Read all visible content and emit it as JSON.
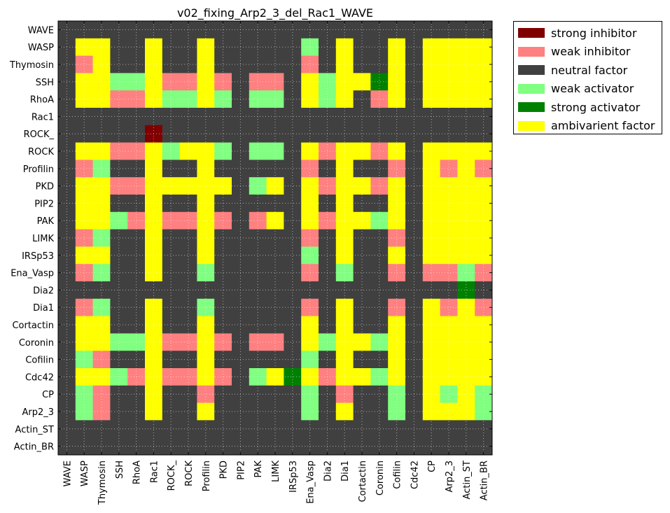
{
  "chart_data": {
    "type": "heatmap",
    "title": "v02_fixing_Arp2_3_del_Rac1_WAVE",
    "grid": true,
    "legend_position": "outside-top-right",
    "columns": [
      "WAVE",
      "WASP",
      "Thymosin",
      "SSH",
      "RhoA",
      "Rac1",
      "ROCK_",
      "ROCK",
      "Profilin",
      "PKD",
      "PIP2",
      "PAK",
      "LIMK",
      "IRSp53",
      "Ena_Vasp",
      "Dia2",
      "Dia1",
      "Cortactin",
      "Coronin",
      "Cofilin",
      "Cdc42",
      "CP",
      "Arp2_3",
      "Actin_ST",
      "Actin_BR"
    ],
    "rows": [
      "WAVE",
      "WASP",
      "Thymosin",
      "SSH",
      "RhoA",
      "Rac1",
      "ROCK_",
      "ROCK",
      "Profilin",
      "PKD",
      "PIP2",
      "PAK",
      "LIMK",
      "IRSp53",
      "Ena_Vasp",
      "Dia2",
      "Dia1",
      "Cortactin",
      "Coronin",
      "Cofilin",
      "Cdc42",
      "CP",
      "Arp2_3",
      "Actin_ST",
      "Actin_BR"
    ],
    "categories": [
      {
        "code": "SI",
        "label": "strong inhibitor",
        "color": "#800000"
      },
      {
        "code": "WI",
        "label": "weak inhibitor",
        "color": "#ff8080"
      },
      {
        "code": "N",
        "label": "neutral factor",
        "color": "#404040"
      },
      {
        "code": "WA",
        "label": "weak activator",
        "color": "#80ff80"
      },
      {
        "code": "SA",
        "label": "strong activator",
        "color": "#008000"
      },
      {
        "code": "A",
        "label": "ambivarient factor",
        "color": "#ffff00"
      }
    ],
    "values": [
      [
        "N",
        "N",
        "N",
        "N",
        "N",
        "N",
        "N",
        "N",
        "N",
        "N",
        "N",
        "N",
        "N",
        "N",
        "N",
        "N",
        "N",
        "N",
        "N",
        "N",
        "N",
        "N",
        "N",
        "N",
        "N"
      ],
      [
        "N",
        "A",
        "A",
        "N",
        "N",
        "A",
        "N",
        "N",
        "A",
        "N",
        "N",
        "N",
        "N",
        "N",
        "WA",
        "N",
        "A",
        "N",
        "N",
        "A",
        "N",
        "A",
        "A",
        "A",
        "A"
      ],
      [
        "N",
        "WI",
        "A",
        "N",
        "N",
        "A",
        "N",
        "N",
        "A",
        "N",
        "N",
        "N",
        "N",
        "N",
        "WI",
        "N",
        "A",
        "N",
        "N",
        "A",
        "N",
        "A",
        "A",
        "A",
        "A"
      ],
      [
        "N",
        "A",
        "A",
        "WA",
        "WA",
        "A",
        "WI",
        "WI",
        "A",
        "WI",
        "N",
        "WI",
        "WI",
        "N",
        "A",
        "WA",
        "A",
        "A",
        "SA",
        "A",
        "N",
        "A",
        "A",
        "A",
        "A"
      ],
      [
        "N",
        "A",
        "A",
        "WI",
        "WI",
        "A",
        "WA",
        "WA",
        "A",
        "WA",
        "N",
        "WA",
        "WA",
        "N",
        "A",
        "WA",
        "A",
        "N",
        "WI",
        "A",
        "N",
        "A",
        "A",
        "A",
        "A"
      ],
      [
        "N",
        "N",
        "N",
        "N",
        "N",
        "N",
        "N",
        "N",
        "N",
        "N",
        "N",
        "N",
        "N",
        "N",
        "N",
        "N",
        "N",
        "N",
        "N",
        "N",
        "N",
        "N",
        "N",
        "N",
        "N"
      ],
      [
        "N",
        "N",
        "N",
        "N",
        "N",
        "SI",
        "N",
        "N",
        "N",
        "N",
        "N",
        "N",
        "N",
        "N",
        "N",
        "N",
        "N",
        "N",
        "N",
        "N",
        "N",
        "N",
        "N",
        "N",
        "N"
      ],
      [
        "N",
        "A",
        "A",
        "WI",
        "WI",
        "A",
        "WA",
        "A",
        "A",
        "WA",
        "N",
        "WA",
        "WA",
        "N",
        "A",
        "WI",
        "A",
        "A",
        "WI",
        "A",
        "N",
        "A",
        "A",
        "A",
        "A"
      ],
      [
        "N",
        "WI",
        "WA",
        "N",
        "N",
        "A",
        "N",
        "N",
        "A",
        "N",
        "N",
        "N",
        "N",
        "N",
        "WI",
        "N",
        "A",
        "N",
        "N",
        "WI",
        "N",
        "A",
        "WI",
        "A",
        "WI"
      ],
      [
        "N",
        "A",
        "A",
        "WI",
        "WI",
        "A",
        "A",
        "A",
        "A",
        "A",
        "N",
        "WA",
        "A",
        "N",
        "A",
        "WI",
        "A",
        "A",
        "WI",
        "A",
        "N",
        "A",
        "A",
        "A",
        "A"
      ],
      [
        "N",
        "A",
        "A",
        "N",
        "N",
        "A",
        "N",
        "N",
        "A",
        "N",
        "N",
        "N",
        "N",
        "N",
        "A",
        "N",
        "A",
        "N",
        "N",
        "A",
        "N",
        "A",
        "A",
        "A",
        "A"
      ],
      [
        "N",
        "A",
        "A",
        "WA",
        "WI",
        "A",
        "WI",
        "WI",
        "A",
        "WI",
        "N",
        "WI",
        "A",
        "N",
        "A",
        "WI",
        "A",
        "A",
        "WA",
        "A",
        "N",
        "A",
        "A",
        "A",
        "A"
      ],
      [
        "N",
        "WI",
        "WA",
        "N",
        "N",
        "A",
        "N",
        "N",
        "A",
        "N",
        "N",
        "N",
        "N",
        "N",
        "WI",
        "N",
        "A",
        "N",
        "N",
        "WI",
        "N",
        "A",
        "A",
        "A",
        "A"
      ],
      [
        "N",
        "A",
        "A",
        "N",
        "N",
        "A",
        "N",
        "N",
        "A",
        "N",
        "N",
        "N",
        "N",
        "N",
        "WA",
        "N",
        "A",
        "N",
        "N",
        "A",
        "N",
        "A",
        "A",
        "A",
        "A"
      ],
      [
        "N",
        "WI",
        "WA",
        "N",
        "N",
        "A",
        "N",
        "N",
        "WA",
        "N",
        "N",
        "N",
        "N",
        "N",
        "WI",
        "N",
        "WA",
        "N",
        "N",
        "WI",
        "N",
        "WI",
        "WI",
        "WA",
        "WI"
      ],
      [
        "N",
        "N",
        "N",
        "N",
        "N",
        "N",
        "N",
        "N",
        "N",
        "N",
        "N",
        "N",
        "N",
        "N",
        "N",
        "N",
        "N",
        "N",
        "N",
        "N",
        "N",
        "N",
        "N",
        "SA",
        "N"
      ],
      [
        "N",
        "WI",
        "WA",
        "N",
        "N",
        "A",
        "N",
        "N",
        "WA",
        "N",
        "N",
        "N",
        "N",
        "N",
        "WI",
        "N",
        "A",
        "N",
        "N",
        "WI",
        "N",
        "A",
        "WI",
        "A",
        "WI"
      ],
      [
        "N",
        "A",
        "A",
        "N",
        "N",
        "A",
        "N",
        "N",
        "A",
        "N",
        "N",
        "N",
        "N",
        "N",
        "A",
        "N",
        "A",
        "N",
        "N",
        "A",
        "N",
        "A",
        "A",
        "A",
        "A"
      ],
      [
        "N",
        "A",
        "A",
        "WA",
        "WA",
        "A",
        "WI",
        "WI",
        "A",
        "WI",
        "N",
        "WI",
        "WI",
        "N",
        "A",
        "WA",
        "A",
        "A",
        "WA",
        "A",
        "N",
        "A",
        "A",
        "A",
        "A"
      ],
      [
        "N",
        "WA",
        "WI",
        "N",
        "N",
        "A",
        "N",
        "N",
        "A",
        "N",
        "N",
        "N",
        "N",
        "N",
        "WA",
        "N",
        "A",
        "N",
        "N",
        "A",
        "N",
        "A",
        "A",
        "A",
        "A"
      ],
      [
        "N",
        "A",
        "A",
        "WA",
        "WI",
        "A",
        "WI",
        "WI",
        "A",
        "WI",
        "N",
        "WA",
        "A",
        "SA",
        "A",
        "WI",
        "A",
        "A",
        "WA",
        "A",
        "N",
        "A",
        "A",
        "A",
        "A"
      ],
      [
        "N",
        "WA",
        "WI",
        "N",
        "N",
        "A",
        "N",
        "N",
        "WI",
        "N",
        "N",
        "N",
        "N",
        "N",
        "WA",
        "N",
        "WI",
        "N",
        "N",
        "WA",
        "N",
        "A",
        "WA",
        "A",
        "WA"
      ],
      [
        "N",
        "WA",
        "WI",
        "N",
        "N",
        "A",
        "N",
        "N",
        "A",
        "N",
        "N",
        "N",
        "N",
        "N",
        "WA",
        "N",
        "A",
        "N",
        "N",
        "WA",
        "N",
        "A",
        "A",
        "A",
        "WA"
      ],
      [
        "N",
        "N",
        "N",
        "N",
        "N",
        "N",
        "N",
        "N",
        "N",
        "N",
        "N",
        "N",
        "N",
        "N",
        "N",
        "N",
        "N",
        "N",
        "N",
        "N",
        "N",
        "N",
        "N",
        "N",
        "N"
      ],
      [
        "N",
        "N",
        "N",
        "N",
        "N",
        "N",
        "N",
        "N",
        "N",
        "N",
        "N",
        "N",
        "N",
        "N",
        "N",
        "N",
        "N",
        "N",
        "N",
        "N",
        "N",
        "N",
        "N",
        "N",
        "N"
      ]
    ]
  }
}
